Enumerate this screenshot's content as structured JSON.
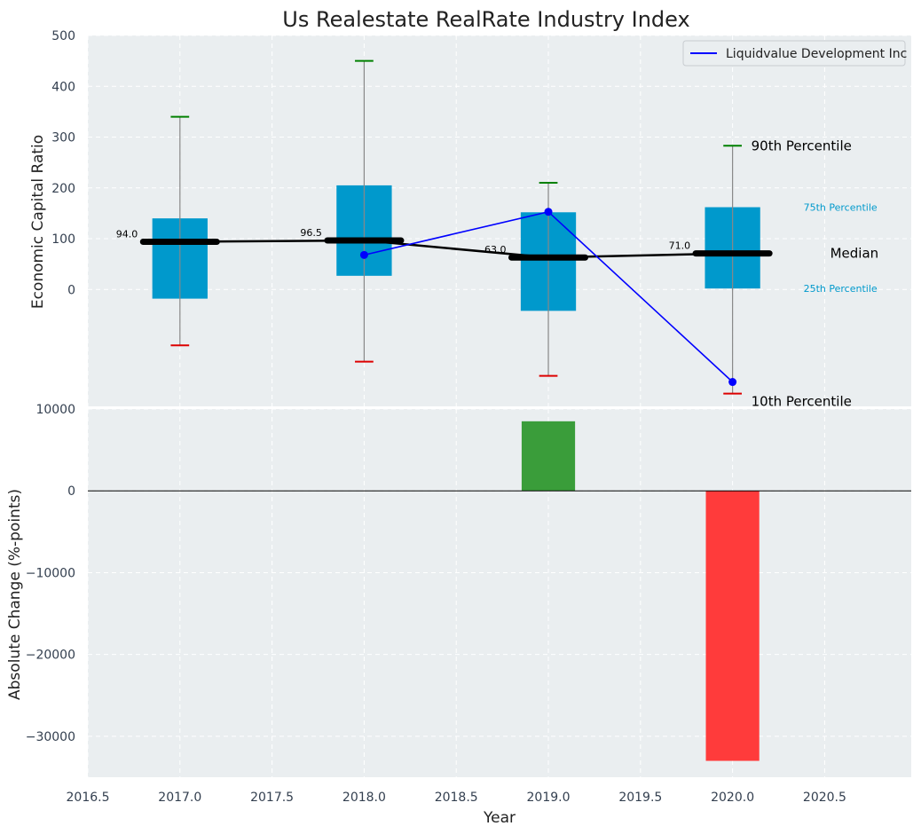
{
  "chart_data": [
    {
      "type": "box",
      "title": "Us Realestate RealRate Industry Index",
      "ylabel": "Economic Capital Ratio",
      "xlim": [
        2016.5,
        2020.97
      ],
      "ylim": [
        -230,
        500
      ],
      "yticks": [
        0,
        100,
        200,
        300,
        400,
        500
      ],
      "grid": true,
      "legend_position": "top-right",
      "percentiles": [
        {
          "year": 2017,
          "p10": -110,
          "p25": -18,
          "median": 94.0,
          "p75": 140,
          "p90": 340
        },
        {
          "year": 2018,
          "p10": -142,
          "p25": 27,
          "median": 96.5,
          "p75": 205,
          "p90": 450
        },
        {
          "year": 2019,
          "p10": -170,
          "p25": -42,
          "median": 63.0,
          "p75": 152,
          "p90": 210
        },
        {
          "year": 2020,
          "p10": -205,
          "p25": 2,
          "median": 71.0,
          "p75": 162,
          "p90": 283
        }
      ],
      "median_labels": [
        "94.0",
        "96.5",
        "63.0",
        "71.0"
      ],
      "series": [
        {
          "name": "Liquidvalue Development Inc",
          "x": [
            2018,
            2019,
            2020
          ],
          "values": [
            68,
            153,
            -182
          ],
          "color": "#0000ff"
        }
      ],
      "annotations": {
        "p90": "90th Percentile",
        "p75": "75th Percentile",
        "median": "Median",
        "p25": "25th Percentile",
        "p10": "10th Percentile"
      },
      "colors": {
        "box": "#0099cc",
        "median": "#000000",
        "whisker": "#888888",
        "cap_high": "#008000",
        "cap_low": "#dd0000",
        "background": "#eaeef0",
        "annotation_blue": "#0099cc"
      }
    },
    {
      "type": "bar",
      "ylabel": "Absolute Change (%-points)",
      "xlabel": "Year",
      "xlim": [
        2016.5,
        2020.97
      ],
      "ylim": [
        -35000,
        10000
      ],
      "yticks": [
        -30000,
        -20000,
        -10000,
        0,
        10000
      ],
      "ytick_labels": [
        "−30000",
        "−20000",
        "−10000",
        "0",
        "10000"
      ],
      "xticks": [
        2016.5,
        2017.0,
        2017.5,
        2018.0,
        2018.5,
        2019.0,
        2019.5,
        2020.0,
        2020.5
      ],
      "xtick_labels": [
        "2016.5",
        "2017.0",
        "2017.5",
        "2018.0",
        "2018.5",
        "2019.0",
        "2019.5",
        "2020.0",
        "2020.5"
      ],
      "grid": true,
      "bars": [
        {
          "x": 2019,
          "value": 8500,
          "color": "#3a9d3a"
        },
        {
          "x": 2020,
          "value": -33000,
          "color": "#ff3b3b"
        }
      ]
    }
  ]
}
